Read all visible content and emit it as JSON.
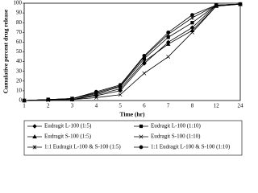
{
  "chart_data": {
    "type": "line",
    "y_label": "Cumulative percent drug release",
    "x_label": "Time (hr)",
    "categories": [
      "1",
      "2",
      "3",
      "4",
      "5",
      "6",
      "7",
      "8",
      "12",
      "24"
    ],
    "ylim": [
      0,
      100
    ],
    "yticks": [
      0,
      10,
      20,
      30,
      40,
      50,
      60,
      70,
      80,
      90,
      100
    ],
    "legend": "bottom",
    "series": [
      {
        "name": "Eudragit L-100 (1:5)",
        "color": "#000000",
        "marker": "diamond",
        "values": [
          0,
          1,
          1,
          5,
          10,
          38,
          60,
          75,
          98,
          99
        ]
      },
      {
        "name": "Eudragit L-100 (1:10)",
        "color": "#000000",
        "marker": "square",
        "values": [
          0,
          1,
          2,
          7,
          14,
          43,
          65,
          80,
          98,
          99
        ]
      },
      {
        "name": "Eudragit S-100 (1:5)",
        "color": "#000000",
        "marker": "triangle",
        "values": [
          0,
          1,
          1,
          6,
          12,
          40,
          58,
          72,
          97,
          99
        ]
      },
      {
        "name": "Eudragit S-100 (1:10)",
        "color": "#000000",
        "marker": "x",
        "values": [
          0,
          0.5,
          1,
          3,
          6,
          28,
          45,
          70,
          97,
          99
        ]
      },
      {
        "name": "1:1 Eudragit L-100 & S-100 (1:5)",
        "color": "#000000",
        "marker": "star",
        "values": [
          0,
          1,
          2,
          8,
          15,
          45,
          68,
          85,
          98,
          99
        ]
      },
      {
        "name": "1:1 Eudragit L-100 & S-100 (1:10)",
        "color": "#000000",
        "marker": "circle",
        "values": [
          0,
          1,
          2,
          9,
          16,
          46,
          70,
          88,
          98,
          99
        ]
      }
    ]
  }
}
